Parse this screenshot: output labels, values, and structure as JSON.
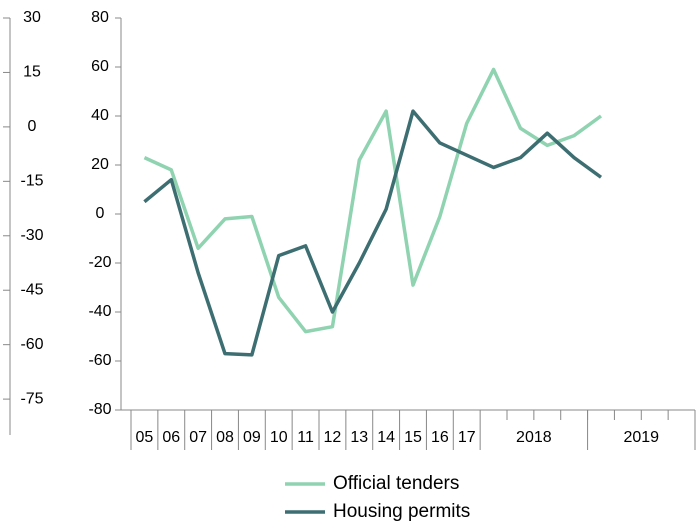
{
  "chart_data": {
    "type": "line",
    "categories": [
      "05",
      "06",
      "07",
      "08",
      "09",
      "10",
      "11",
      "12",
      "13",
      "14",
      "15",
      "16",
      "17",
      null,
      null,
      null,
      null,
      null,
      null,
      null,
      null
    ],
    "x_groups": [
      {
        "label": "2018",
        "span": 4
      },
      {
        "label": "2019",
        "span": 4
      }
    ],
    "series": [
      {
        "name": "Official tenders",
        "color": "#8fd3b1",
        "values": [
          23,
          18,
          -14,
          -2,
          -1,
          -34,
          -48,
          -46,
          22,
          42,
          -29,
          -1,
          37,
          59,
          35,
          28,
          32,
          40,
          null,
          null,
          null
        ]
      },
      {
        "name": "Housing permits",
        "color": "#3d6e72",
        "values": [
          5,
          14,
          -24,
          -57,
          -57.5,
          -17,
          -13,
          -40,
          -20,
          2,
          42,
          29,
          24,
          19,
          23,
          33,
          23,
          15,
          null,
          null,
          null
        ]
      }
    ],
    "ylim": [
      -80,
      80
    ],
    "yticks": [
      -80,
      -60,
      -40,
      -20,
      0,
      20,
      40,
      60,
      80
    ],
    "y2lim": [
      -78,
      30
    ],
    "y2ticks": [
      30,
      15,
      0,
      -15,
      -30,
      -45,
      -60,
      -75
    ],
    "legend": "bottom"
  }
}
